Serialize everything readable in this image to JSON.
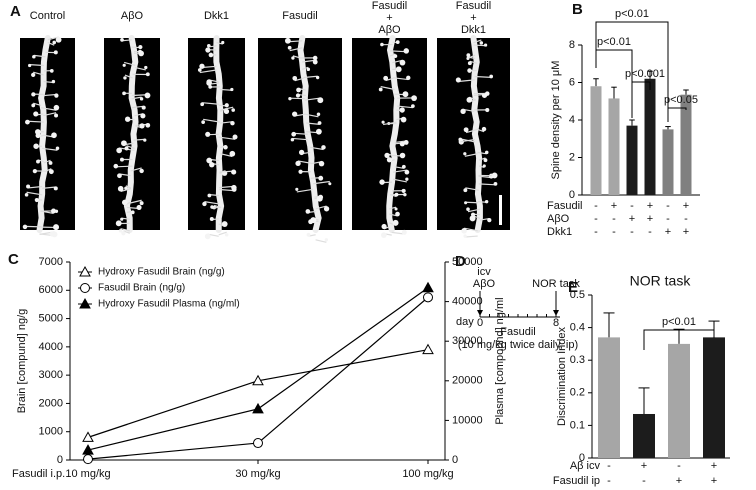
{
  "panel_labels": [
    "A",
    "B",
    "C",
    "D",
    "E"
  ],
  "image_panel": {
    "labels": [
      [
        "Control"
      ],
      [
        "AβO"
      ],
      [
        "Dkk1"
      ],
      [
        "Fasudil"
      ],
      [
        "Fasudil",
        "+",
        "AβO"
      ],
      [
        "Fasudil",
        "+",
        "Dkk1"
      ]
    ]
  },
  "timeline": {
    "start_event": [
      "icv",
      "AβO"
    ],
    "end_event": "NOR task",
    "axis_label": "day",
    "start_day": "0",
    "end_day": "8",
    "treatment": [
      "Fasudil",
      "(10 mg/kg twice daily, ip)"
    ]
  },
  "chart_data": [
    {
      "type": "bar",
      "ylabel": "Spine density per 10 μM",
      "ylim": [
        0,
        8
      ],
      "yticks": [
        0,
        2,
        4,
        6,
        8
      ],
      "values": [
        5.8,
        5.15,
        3.7,
        6.2,
        3.5,
        5.35
      ],
      "errors": [
        0.4,
        0.6,
        0.3,
        0.4,
        0.15,
        0.25
      ],
      "colors": [
        "#a6a6a6",
        "#a6a6a6",
        "#1c1c1c",
        "#1c1c1c",
        "#808080",
        "#808080"
      ],
      "conditions": [
        {
          "name": "Fasudil",
          "values": [
            "-",
            "+",
            "-",
            "+",
            "-",
            "+"
          ]
        },
        {
          "name": "AβO",
          "values": [
            "-",
            "-",
            "+",
            "+",
            "-",
            "-"
          ]
        },
        {
          "name": "Dkk1",
          "values": [
            "-",
            "-",
            "-",
            "-",
            "+",
            "+"
          ]
        }
      ],
      "annotations": [
        "p<0.01",
        "p<0.01",
        "p<0.001",
        "p<0.05"
      ]
    },
    {
      "type": "line",
      "xlabel": "Fasudil i.p.",
      "categories": [
        "10 mg/kg",
        "30 mg/kg",
        "100 mg/kg"
      ],
      "ylabel": "Brain [compund] ng/g",
      "y2label": "Plasma [compound] ng/ml",
      "ylim": [
        0,
        7000
      ],
      "yticks": [
        0,
        1000,
        2000,
        3000,
        4000,
        5000,
        6000,
        7000
      ],
      "y2lim": [
        0,
        50000
      ],
      "y2ticks": [
        0,
        10000,
        20000,
        30000,
        40000,
        50000
      ],
      "legend": "upper left",
      "series": [
        {
          "name": "Hydroxy Fasudil Brain (ng/g)",
          "marker": "open-triangle",
          "color": "#000000",
          "values": [
            800,
            2800,
            3900
          ]
        },
        {
          "name": "Fasudil Brain (ng/g)",
          "marker": "open-circle",
          "color": "#000000",
          "values": [
            30,
            600,
            5750
          ]
        },
        {
          "name": "Hydroxy Fasudil Plasma (ng/ml)",
          "marker": "filled-triangle",
          "color": "#000000",
          "axis": "y2",
          "values": [
            2500,
            12900,
            43500
          ]
        }
      ]
    },
    {
      "type": "bar",
      "title": "NOR task",
      "ylabel": "Discrimination Index",
      "ylim": [
        0,
        0.5
      ],
      "yticks": [
        0,
        0.1,
        0.2,
        0.3,
        0.4,
        0.5
      ],
      "values": [
        0.37,
        0.135,
        0.35,
        0.37
      ],
      "errors": [
        0.075,
        0.08,
        0.045,
        0.05
      ],
      "colors": [
        "#a6a6a6",
        "#1c1c1c",
        "#a6a6a6",
        "#1c1c1c"
      ],
      "conditions": [
        {
          "name": "Aβ icv",
          "values": [
            "-",
            "+",
            "-",
            "+"
          ]
        },
        {
          "name": "Fasudil  ip",
          "values": [
            "-",
            "-",
            "+",
            "+"
          ]
        }
      ],
      "annotations": [
        "p<0.01"
      ]
    }
  ]
}
